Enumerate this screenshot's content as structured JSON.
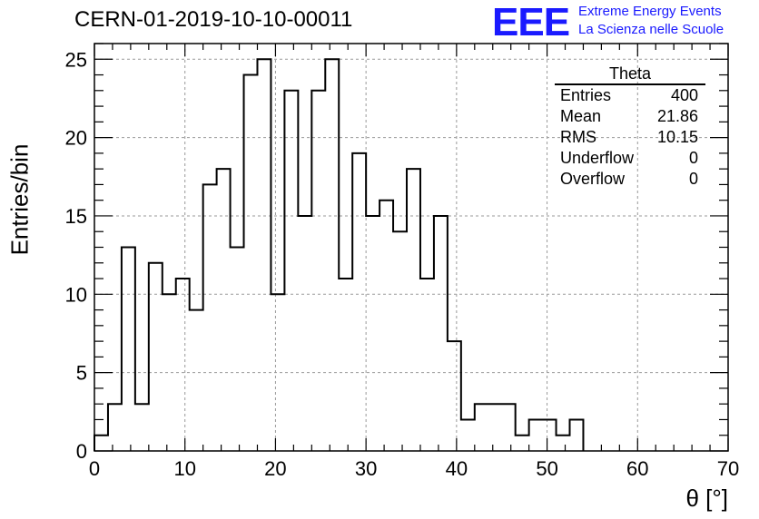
{
  "title": "CERN-01-2019-10-10-00011",
  "logo": {
    "mark": "EEE",
    "line1": "Extreme Energy Events",
    "line2": "La Scienza nelle Scuole",
    "color": "#1a1aff"
  },
  "stats_box": {
    "title": "Theta",
    "rows": [
      {
        "label": "Entries",
        "value": "400"
      },
      {
        "label": "Mean",
        "value": "21.86"
      },
      {
        "label": "RMS",
        "value": "10.15"
      },
      {
        "label": "Underflow",
        "value": "0"
      },
      {
        "label": "Overflow",
        "value": "0"
      }
    ]
  },
  "chart_data": {
    "type": "bar",
    "title": "CERN-01-2019-10-10-00011",
    "xlabel": "θ [°]",
    "ylabel": "Entries/bin",
    "xlim": [
      0,
      70
    ],
    "ylim": [
      0,
      26
    ],
    "grid": true,
    "bin_width": 1.5,
    "x_ticks": [
      0,
      10,
      20,
      30,
      40,
      50,
      60,
      70
    ],
    "y_ticks": [
      0,
      5,
      10,
      15,
      20,
      25
    ],
    "bin_edges_start": 0,
    "values": [
      1,
      3,
      13,
      3,
      12,
      10,
      11,
      9,
      17,
      18,
      13,
      24,
      25,
      10,
      23,
      15,
      23,
      25,
      11,
      19,
      15,
      16,
      14,
      18,
      11,
      15,
      7,
      2,
      3,
      3,
      3,
      1,
      2,
      2,
      1,
      2
    ]
  }
}
